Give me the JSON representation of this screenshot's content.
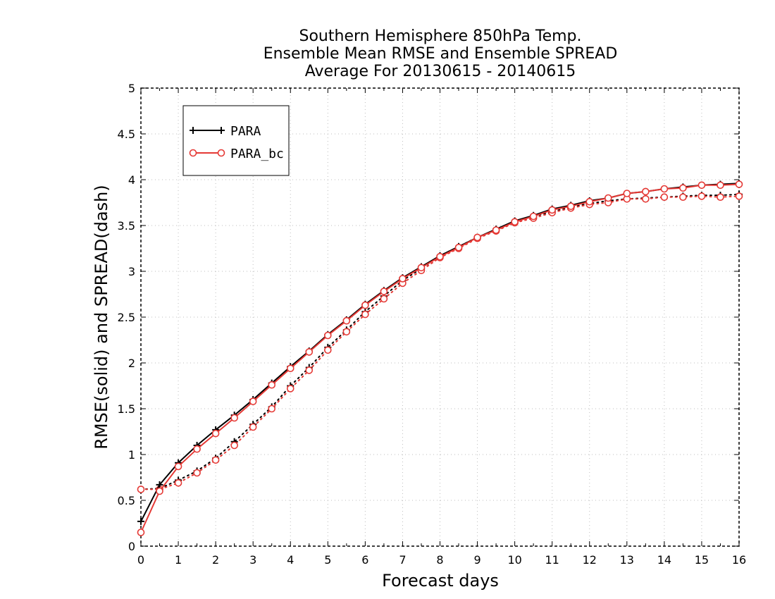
{
  "chart_data": {
    "type": "line",
    "title_lines": [
      "Southern Hemisphere 850hPa Temp.",
      "Ensemble Mean RMSE and Ensemble SPREAD",
      "Average For 20130615 - 20140615"
    ],
    "xlabel": "Forecast days",
    "ylabel": "RMSE(solid) and SPREAD(dash)",
    "xlim": [
      0,
      16
    ],
    "ylim": [
      0,
      5
    ],
    "x_ticks": [
      "0",
      "1",
      "2",
      "3",
      "4",
      "5",
      "6",
      "7",
      "8",
      "9",
      "10",
      "11",
      "12",
      "13",
      "14",
      "15",
      "16"
    ],
    "y_ticks": [
      "0",
      "0.5",
      "1",
      "1.5",
      "2",
      "2.5",
      "3",
      "3.5",
      "4",
      "4.5",
      "5"
    ],
    "grid": true,
    "legend_position": "top-left",
    "x": [
      0,
      0.5,
      1,
      1.5,
      2,
      2.5,
      3,
      3.5,
      4,
      4.5,
      5,
      5.5,
      6,
      6.5,
      7,
      7.5,
      8,
      8.5,
      9,
      9.5,
      10,
      10.5,
      11,
      11.5,
      12,
      12.5,
      13,
      13.5,
      14,
      14.5,
      15,
      15.5,
      16
    ],
    "series": [
      {
        "name": "PARA",
        "color": "#000000",
        "marker": "plus",
        "rmse": [
          0.27,
          0.67,
          0.91,
          1.1,
          1.27,
          1.43,
          1.6,
          1.78,
          1.96,
          2.13,
          2.31,
          2.47,
          2.64,
          2.79,
          2.93,
          3.05,
          3.17,
          3.27,
          3.37,
          3.46,
          3.55,
          3.61,
          3.68,
          3.72,
          3.77,
          3.8,
          3.85,
          3.87,
          3.9,
          3.92,
          3.94,
          3.95,
          3.96
        ],
        "spread": [
          0.62,
          0.63,
          0.72,
          0.82,
          0.96,
          1.14,
          1.33,
          1.52,
          1.75,
          1.95,
          2.17,
          2.36,
          2.56,
          2.73,
          2.9,
          3.03,
          3.17,
          3.27,
          3.37,
          3.45,
          3.54,
          3.6,
          3.65,
          3.7,
          3.74,
          3.77,
          3.79,
          3.8,
          3.81,
          3.82,
          3.83,
          3.83,
          3.84
        ]
      },
      {
        "name": "PARA_bc",
        "color": "#e53935",
        "marker": "circle",
        "rmse": [
          0.15,
          0.6,
          0.87,
          1.06,
          1.23,
          1.4,
          1.58,
          1.76,
          1.94,
          2.12,
          2.3,
          2.46,
          2.63,
          2.78,
          2.92,
          3.04,
          3.16,
          3.26,
          3.37,
          3.45,
          3.54,
          3.6,
          3.67,
          3.71,
          3.76,
          3.8,
          3.85,
          3.87,
          3.9,
          3.91,
          3.94,
          3.94,
          3.95
        ],
        "spread": [
          0.62,
          0.62,
          0.69,
          0.8,
          0.94,
          1.1,
          1.3,
          1.5,
          1.72,
          1.92,
          2.14,
          2.34,
          2.53,
          2.7,
          2.87,
          3.01,
          3.15,
          3.25,
          3.36,
          3.44,
          3.53,
          3.58,
          3.64,
          3.69,
          3.73,
          3.75,
          3.79,
          3.79,
          3.81,
          3.81,
          3.82,
          3.81,
          3.82
        ]
      }
    ]
  }
}
